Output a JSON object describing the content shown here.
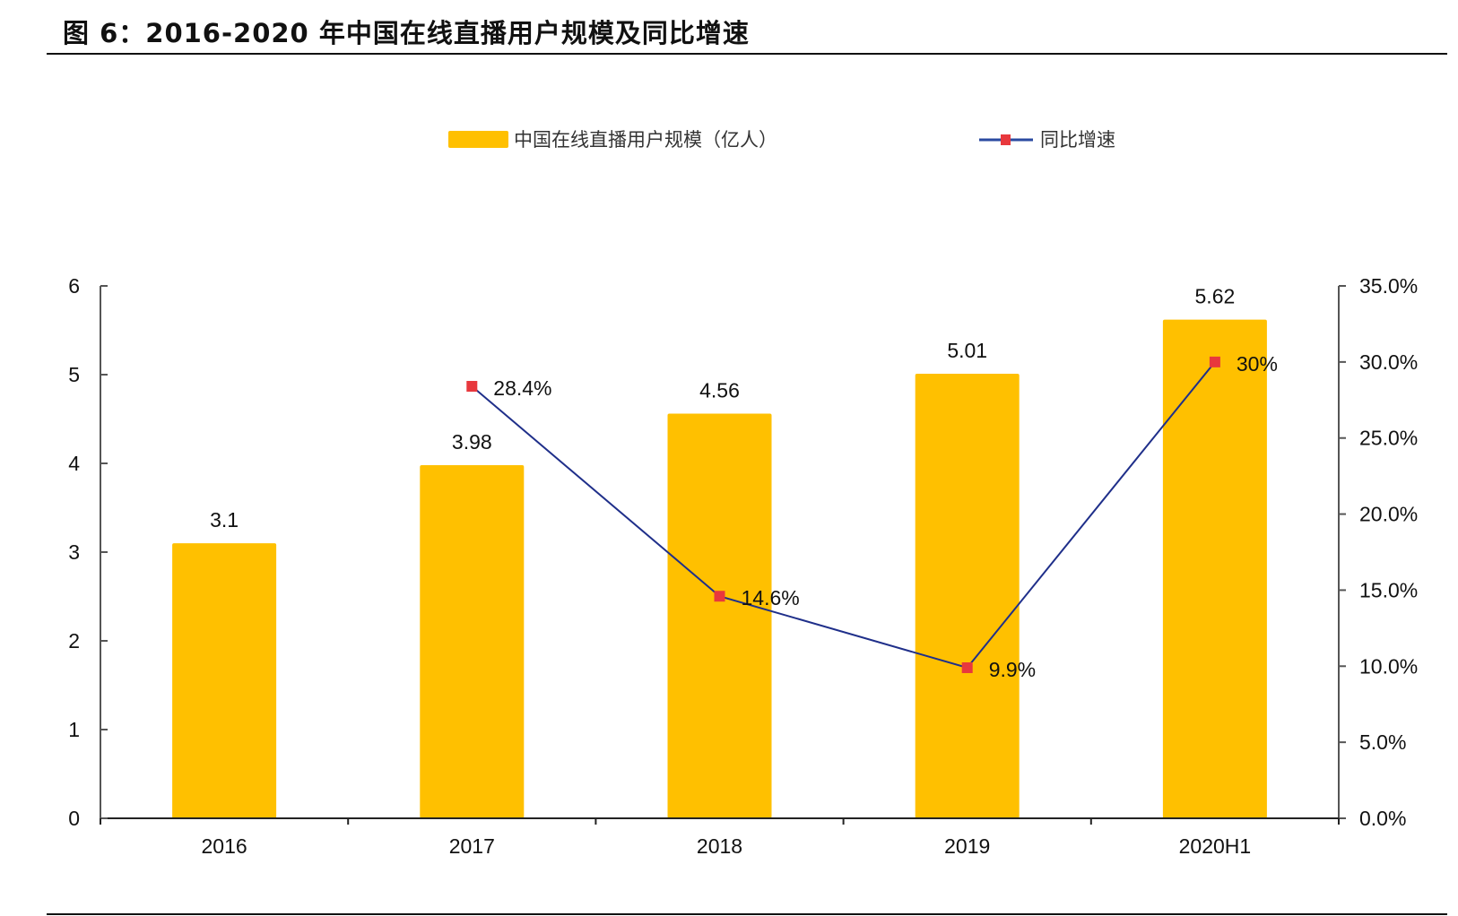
{
  "title": "图 6：2016-2020 年中国在线直播用户规模及同比增速",
  "colors": {
    "bar": "#FFC000",
    "line": "#1F2F8A",
    "marker": "#E8383D",
    "axis": "#555555"
  },
  "chart_data": {
    "type": "bar+line",
    "categories": [
      "2016",
      "2017",
      "2018",
      "2019",
      "2020H1"
    ],
    "series": [
      {
        "name": "中国在线直播用户规模（亿人）",
        "type": "bar",
        "axis": "left",
        "values": [
          3.1,
          3.98,
          4.56,
          5.01,
          5.62
        ],
        "labels": [
          "3.1",
          "3.98",
          "4.56",
          "5.01",
          "5.62"
        ]
      },
      {
        "name": "同比增速",
        "type": "line",
        "axis": "right",
        "values": [
          null,
          28.4,
          14.6,
          9.9,
          30
        ],
        "labels": [
          "",
          "28.4%",
          "14.6%",
          "9.9%",
          "30%"
        ]
      }
    ],
    "y_left": {
      "range": [
        0,
        6
      ],
      "ticks": [
        "0",
        "1",
        "2",
        "3",
        "4",
        "5",
        "6"
      ]
    },
    "y_right": {
      "range": [
        0,
        35
      ],
      "ticks": [
        "0.0%",
        "5.0%",
        "10.0%",
        "15.0%",
        "20.0%",
        "25.0%",
        "30.0%",
        "35.0%"
      ]
    },
    "legend": "top-center",
    "grid": false
  }
}
